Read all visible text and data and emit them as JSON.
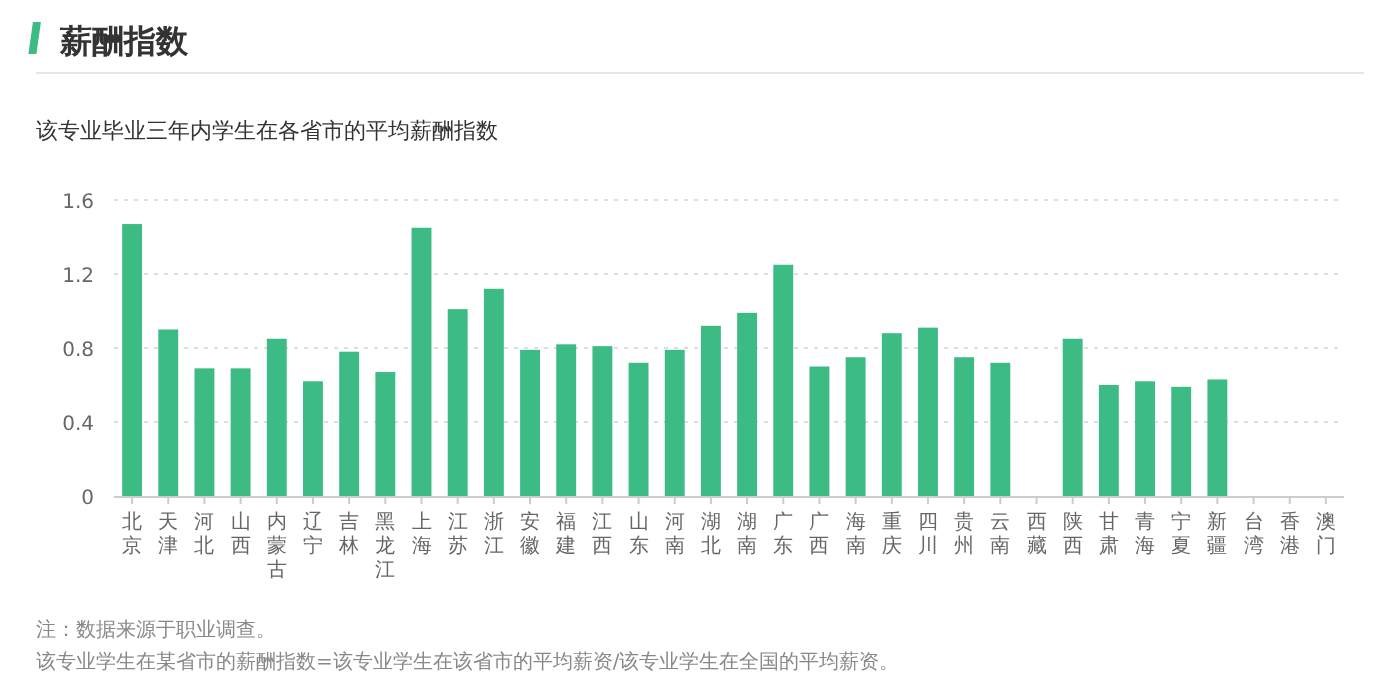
{
  "chart_data": {
    "type": "bar",
    "title": "薪酬指数",
    "subtitle": "该专业毕业三年内学生在各省市的平均薪酬指数",
    "categories": [
      "北京",
      "天津",
      "河北",
      "山西",
      "内蒙古",
      "辽宁",
      "吉林",
      "黑龙江",
      "上海",
      "江苏",
      "浙江",
      "安徽",
      "福建",
      "江西",
      "山东",
      "河南",
      "湖北",
      "湖南",
      "广东",
      "广西",
      "海南",
      "重庆",
      "四川",
      "贵州",
      "云南",
      "西藏",
      "陕西",
      "甘肃",
      "青海",
      "宁夏",
      "新疆",
      "台湾",
      "香港",
      "澳门"
    ],
    "values": [
      1.47,
      0.9,
      0.69,
      0.69,
      0.85,
      0.62,
      0.78,
      0.67,
      1.45,
      1.01,
      1.12,
      0.79,
      0.82,
      0.81,
      0.72,
      0.79,
      0.92,
      0.99,
      1.25,
      0.7,
      0.75,
      0.88,
      0.91,
      0.75,
      0.72,
      null,
      0.85,
      0.6,
      0.62,
      0.59,
      0.63,
      null,
      null,
      null
    ],
    "color": "#3dbb85",
    "ylim": [
      0,
      1.6
    ],
    "yticks": [
      0,
      0.4,
      0.8,
      1.2,
      1.6
    ],
    "grid": "y",
    "annotations": [
      "注：数据来源于职业调查。",
      "该专业学生在某省市的薪酬指数=该专业学生在该省市的平均薪资/该专业学生在全国的平均薪资。"
    ]
  }
}
